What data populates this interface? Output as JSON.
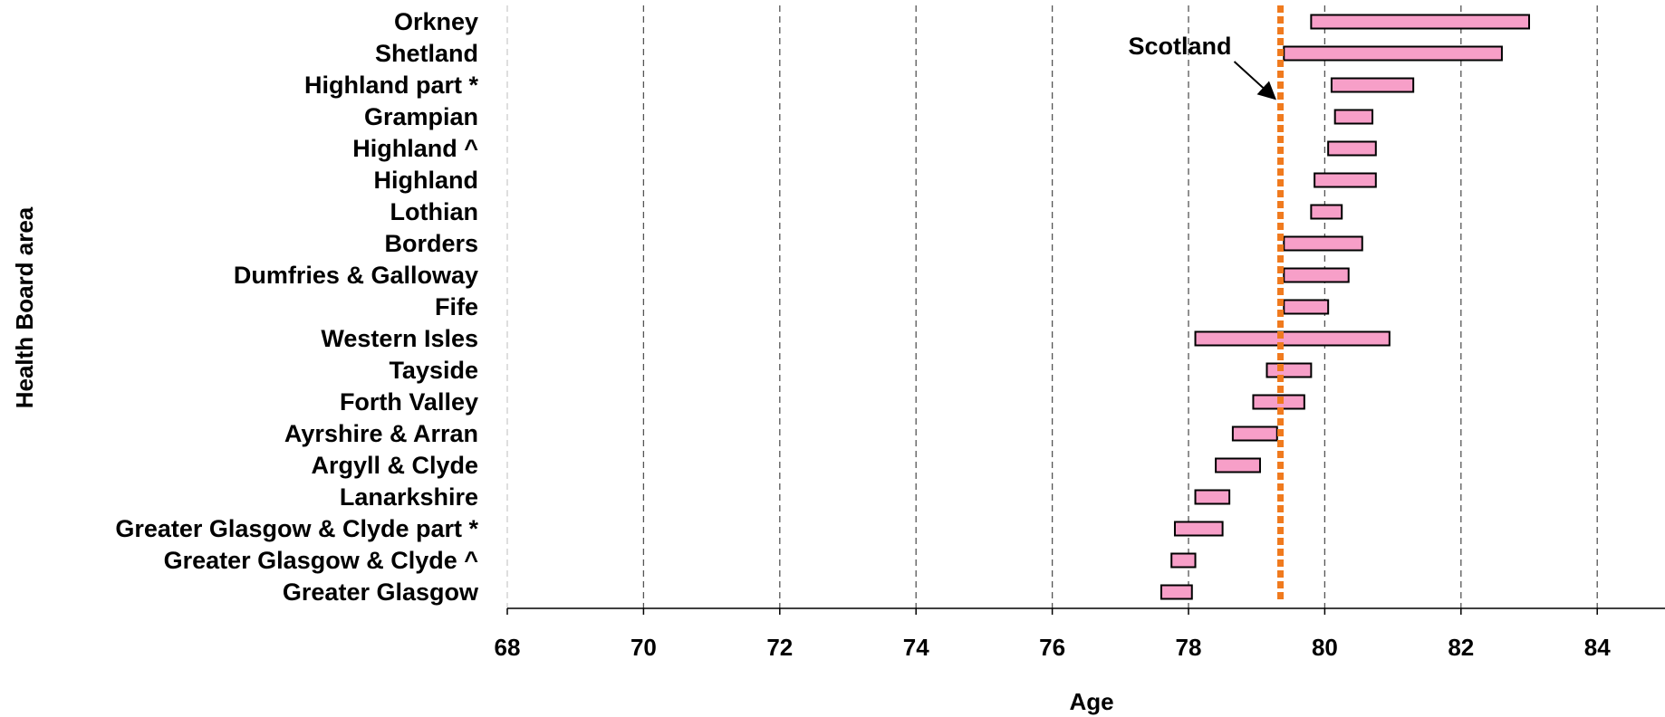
{
  "chart_data": {
    "type": "bar",
    "orientation": "horizontal-range",
    "title": "",
    "xlabel": "Age",
    "ylabel": "Health Board area",
    "xlim": [
      68,
      85
    ],
    "xticks": [
      68,
      70,
      72,
      74,
      76,
      78,
      80,
      82,
      84
    ],
    "grid": "vertical dashed",
    "categories": [
      "Orkney",
      "Shetland",
      "Highland part *",
      "Grampian",
      "Highland ^",
      "Highland",
      "Lothian",
      "Borders",
      "Dumfries & Galloway",
      "Fife",
      "Western Isles",
      "Tayside",
      "Forth Valley",
      "Ayrshire & Arran",
      "Argyll & Clyde",
      "Lanarkshire",
      "Greater Glasgow & Clyde part *",
      "Greater Glasgow & Clyde ^",
      "Greater Glasgow"
    ],
    "ranges": [
      [
        79.8,
        83.0
      ],
      [
        79.4,
        82.6
      ],
      [
        80.1,
        81.3
      ],
      [
        80.15,
        80.7
      ],
      [
        80.05,
        80.75
      ],
      [
        79.85,
        80.75
      ],
      [
        79.8,
        80.25
      ],
      [
        79.4,
        80.55
      ],
      [
        79.4,
        80.35
      ],
      [
        79.4,
        80.05
      ],
      [
        78.1,
        80.95
      ],
      [
        79.15,
        79.8
      ],
      [
        78.95,
        79.7
      ],
      [
        78.65,
        79.3
      ],
      [
        78.4,
        79.05
      ],
      [
        78.1,
        78.6
      ],
      [
        77.8,
        78.5
      ],
      [
        77.75,
        78.1
      ],
      [
        77.6,
        78.05
      ]
    ],
    "reference_line": {
      "label": "Scotland",
      "value": 79.35
    },
    "colors": {
      "bar_fill": "#f79fc8",
      "bar_stroke": "#000000",
      "reference_line": "#f07a1e",
      "grid": "#555555"
    }
  }
}
